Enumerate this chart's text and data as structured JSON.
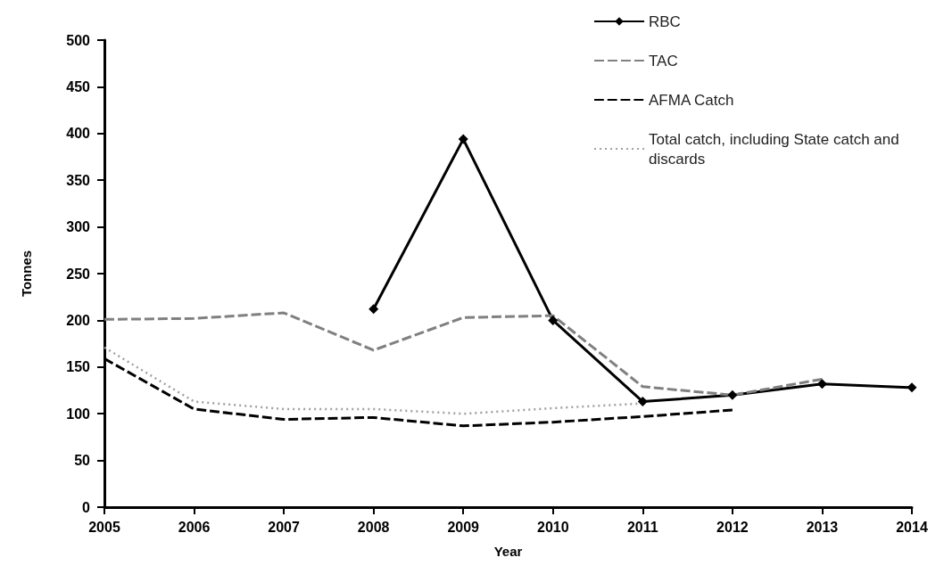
{
  "chart_data": {
    "type": "line",
    "xlabel": "Year",
    "ylabel": "Tonnes",
    "x": [
      2005,
      2006,
      2007,
      2008,
      2009,
      2010,
      2011,
      2012,
      2013,
      2014
    ],
    "series": [
      {
        "name": "RBC",
        "color": "#000000",
        "marker": "diamond",
        "line_style": "solid",
        "values": [
          null,
          null,
          null,
          212,
          394,
          200,
          113,
          120,
          132,
          128
        ]
      },
      {
        "name": "TAC",
        "color": "#808080",
        "marker": "none",
        "line_style": "dashed",
        "values": [
          201,
          202,
          208,
          168,
          203,
          205,
          129,
          120,
          137,
          null
        ]
      },
      {
        "name": "AFMA Catch",
        "color": "#000000",
        "marker": "none",
        "line_style": "dashed",
        "values": [
          159,
          105,
          94,
          96,
          87,
          91,
          97,
          104,
          null,
          null
        ]
      },
      {
        "name": "Total catch, including State catch and discards",
        "color": "#a0a0a0",
        "marker": "none",
        "line_style": "dotted",
        "values": [
          171,
          113,
          105,
          105,
          100,
          106,
          111,
          null,
          null,
          null
        ]
      }
    ],
    "xlim": [
      2005,
      2014
    ],
    "xticks": [
      2005,
      2006,
      2007,
      2008,
      2009,
      2010,
      2011,
      2012,
      2013,
      2014
    ],
    "ylim": [
      0,
      500
    ],
    "yticks": [
      0,
      50,
      100,
      150,
      200,
      250,
      300,
      350,
      400,
      450,
      500
    ],
    "grid": false,
    "legend": "top right"
  }
}
